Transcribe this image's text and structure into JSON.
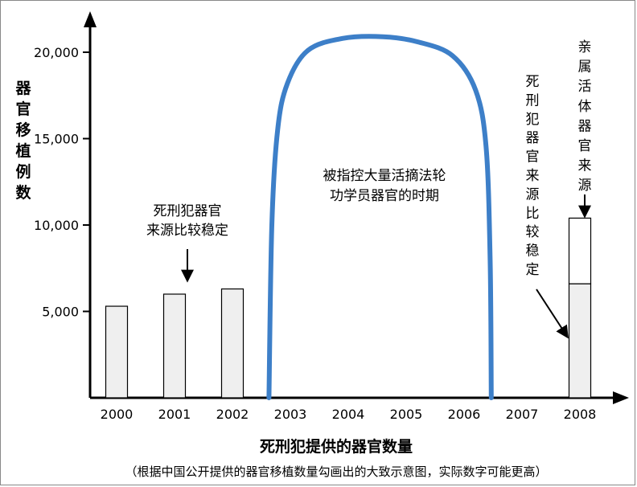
{
  "chart_data": {
    "type": "bar",
    "ylabel": "器官移植例数",
    "xlabel": "死刑犯提供的器官数量",
    "footnote": "（根据中国公开提供的器官移植数量勾画出的大致示意图，实际数字可能更高）",
    "categories": [
      "2000",
      "2001",
      "2002",
      "2003",
      "2004",
      "2005",
      "2006",
      "2007",
      "2008"
    ],
    "y_ticks": [
      {
        "value": 5000,
        "label": "5,000"
      },
      {
        "value": 10000,
        "label": "10,000"
      },
      {
        "value": 15000,
        "label": "15,000"
      },
      {
        "value": 20000,
        "label": "20,000"
      }
    ],
    "ylim": [
      0,
      22000
    ],
    "bars": [
      {
        "category": "2000",
        "value": 5300
      },
      {
        "category": "2001",
        "value": 6000
      },
      {
        "category": "2002",
        "value": 6300
      }
    ],
    "stacked_bar": {
      "category": "2008",
      "lower_value": 6600,
      "total_value": 10400
    },
    "curve": {
      "points": [
        {
          "x": 2002.63,
          "y": 0
        },
        {
          "x": 2002.68,
          "y": 10000
        },
        {
          "x": 2002.78,
          "y": 15500
        },
        {
          "x": 2002.95,
          "y": 18200
        },
        {
          "x": 2003.3,
          "y": 20100
        },
        {
          "x": 2003.9,
          "y": 20800
        },
        {
          "x": 2004.6,
          "y": 20900
        },
        {
          "x": 2005.2,
          "y": 20600
        },
        {
          "x": 2005.8,
          "y": 19800
        },
        {
          "x": 2006.2,
          "y": 17800
        },
        {
          "x": 2006.38,
          "y": 14500
        },
        {
          "x": 2006.45,
          "y": 8000
        },
        {
          "x": 2006.47,
          "y": 0
        }
      ],
      "color": "#3d7fc8"
    },
    "annotations": {
      "stable_early": [
        "死刑犯器官",
        "来源比较稳定"
      ],
      "harvest_period": [
        "被指控大量活摘法轮",
        "功学员器官的时期"
      ],
      "stable_late": "死刑犯器官来源比较稳定",
      "living_relatives": "亲属活体器官来源"
    },
    "colors": {
      "bar_fill": "#efefef",
      "bar_stroke": "#000000",
      "curve": "#3d7fc8"
    }
  }
}
